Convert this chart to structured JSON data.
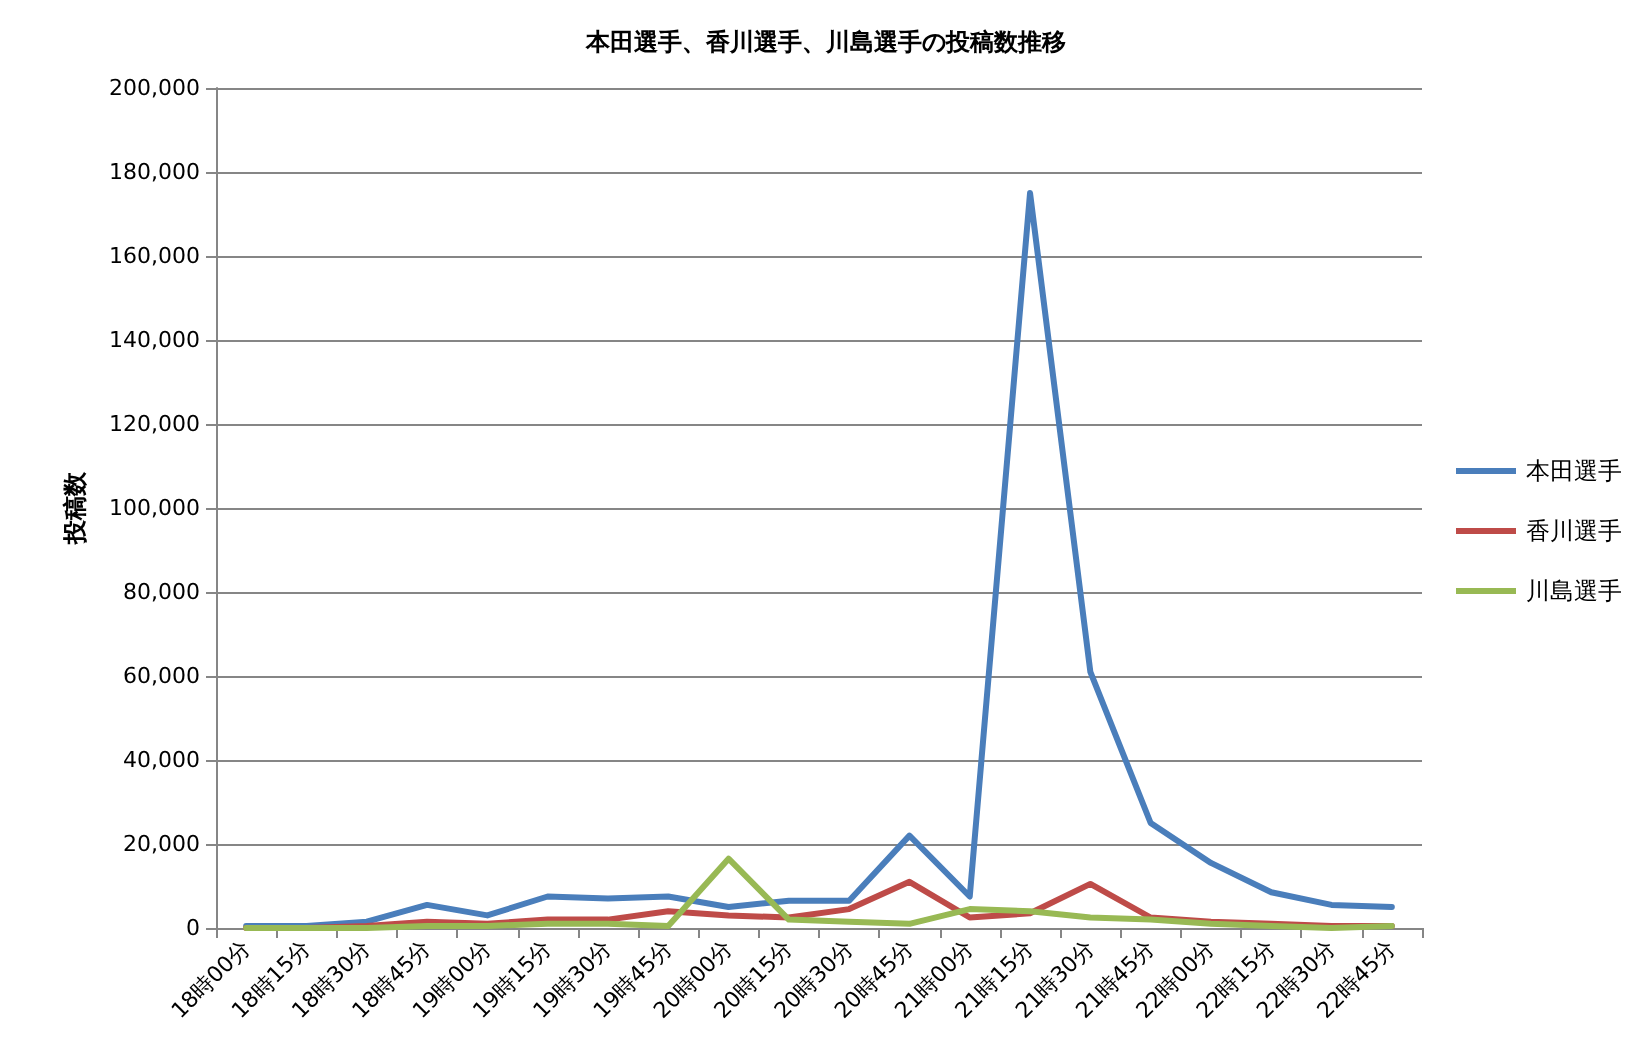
{
  "chart_data": {
    "type": "line",
    "title": "本田選手、香川選手、川島選手の投稿数推移",
    "ylabel": "投稿数",
    "categories": [
      "18時00分",
      "18時15分",
      "18時30分",
      "18時45分",
      "19時00分",
      "19時15分",
      "19時30分",
      "19時45分",
      "20時00分",
      "20時15分",
      "20時30分",
      "20時45分",
      "21時00分",
      "21時15分",
      "21時30分",
      "21時45分",
      "22時00分",
      "22時15分",
      "22時30分",
      "22時45分"
    ],
    "series": [
      {
        "name": "本田選手",
        "color": "#4a7ebb",
        "values": [
          500,
          500,
          1500,
          5500,
          3000,
          7500,
          7000,
          7500,
          5000,
          6500,
          6500,
          22000,
          7500,
          175000,
          61000,
          25000,
          15500,
          8500,
          5500,
          5000
        ]
      },
      {
        "name": "香川選手",
        "color": "#be4b48",
        "values": [
          0,
          0,
          500,
          1500,
          1000,
          2000,
          2000,
          4000,
          3000,
          2500,
          4500,
          11000,
          2500,
          3500,
          10500,
          2500,
          1500,
          1000,
          500,
          500
        ]
      },
      {
        "name": "川島選手",
        "color": "#98b954",
        "values": [
          0,
          0,
          0,
          500,
          500,
          1000,
          1000,
          500,
          16500,
          2000,
          1500,
          1000,
          4500,
          4000,
          2500,
          2000,
          1000,
          500,
          0,
          500
        ]
      }
    ],
    "ylim": [
      0,
      200000
    ],
    "yticks": [
      0,
      {
        "value": 20000,
        "label": "20,000"
      },
      {
        "value": 40000,
        "label": "40,000"
      },
      {
        "value": 60000,
        "label": "60,000"
      },
      {
        "value": 80000,
        "label": "80,000"
      },
      {
        "value": 100000,
        "label": "100,000"
      },
      {
        "value": 120000,
        "label": "120,000"
      },
      {
        "value": 140000,
        "label": "140,000"
      },
      {
        "value": 160000,
        "label": "160,000"
      },
      {
        "value": 180000,
        "label": "180,000"
      },
      {
        "value": 200000,
        "label": "200,000"
      }
    ],
    "grid": "y",
    "legend": "right",
    "marker": "none",
    "line_style": "solid"
  }
}
